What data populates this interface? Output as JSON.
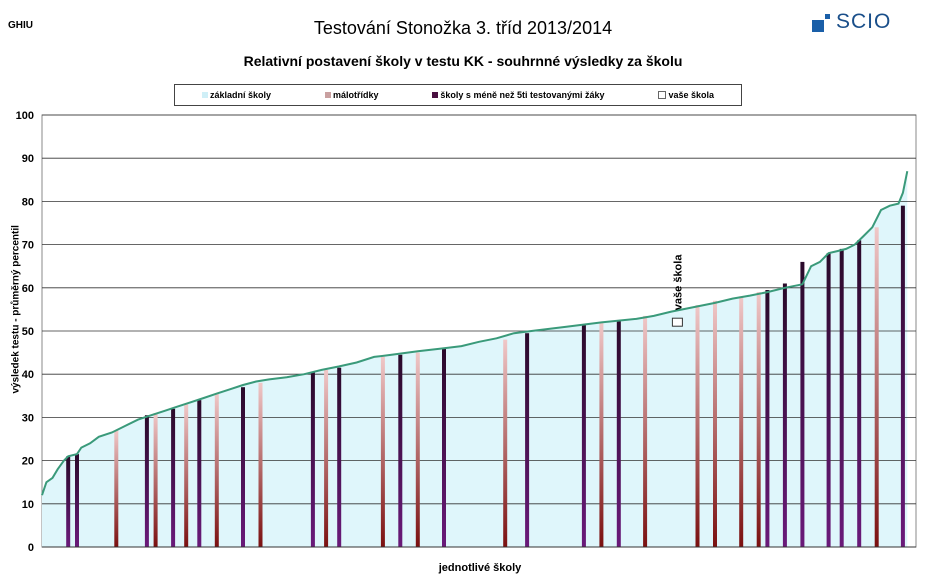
{
  "header": {
    "code": "GHIU",
    "logo_text": "SCIO"
  },
  "chart_data": {
    "type": "bar",
    "title": "Testování Stonožka 3. tříd 2013/2014",
    "subtitle": "Relativní postavení školy v testu KK - souhrnné výsledky za školu",
    "xlabel": "jednotlivé školy",
    "ylabel": "výsledek testu - průměrný percentil",
    "ylim": [
      0,
      100
    ],
    "yticks": [
      0,
      10,
      20,
      30,
      40,
      50,
      60,
      70,
      80,
      90,
      100
    ],
    "grid": true,
    "legend_position": "top",
    "legend": [
      {
        "key": "zakladni",
        "label": "základní školy",
        "color": "#cfeff7"
      },
      {
        "key": "malotridky",
        "label": "málotřídky",
        "color": "#c9a0a0"
      },
      {
        "key": "mene5",
        "label": "školy s méně než 5ti testovanými žáky",
        "color": "#4a1040"
      },
      {
        "key": "vase",
        "label": "vaše škola",
        "color": "#ffffff"
      }
    ],
    "annotation": {
      "label": "vaše škola",
      "value": 52.5,
      "position_fraction": 0.727
    },
    "curve_points": [
      [
        0,
        12
      ],
      [
        0.005,
        15
      ],
      [
        0.012,
        16
      ],
      [
        0.018,
        18
      ],
      [
        0.025,
        20
      ],
      [
        0.03,
        21
      ],
      [
        0.04,
        21.5
      ],
      [
        0.045,
        23
      ],
      [
        0.055,
        24
      ],
      [
        0.065,
        25.5
      ],
      [
        0.08,
        26.5
      ],
      [
        0.095,
        28
      ],
      [
        0.11,
        29.5
      ],
      [
        0.125,
        30.5
      ],
      [
        0.14,
        31.5
      ],
      [
        0.155,
        32.5
      ],
      [
        0.17,
        33.5
      ],
      [
        0.185,
        34.5
      ],
      [
        0.2,
        35.5
      ],
      [
        0.215,
        36.5
      ],
      [
        0.23,
        37.5
      ],
      [
        0.245,
        38.3
      ],
      [
        0.26,
        38.8
      ],
      [
        0.28,
        39.3
      ],
      [
        0.3,
        40
      ],
      [
        0.32,
        41
      ],
      [
        0.34,
        41.8
      ],
      [
        0.36,
        42.7
      ],
      [
        0.38,
        44
      ],
      [
        0.4,
        44.5
      ],
      [
        0.43,
        45.3
      ],
      [
        0.46,
        46
      ],
      [
        0.48,
        46.5
      ],
      [
        0.5,
        47.5
      ],
      [
        0.52,
        48.3
      ],
      [
        0.54,
        49.5
      ],
      [
        0.56,
        50
      ],
      [
        0.6,
        51
      ],
      [
        0.64,
        52
      ],
      [
        0.68,
        52.8
      ],
      [
        0.7,
        53.5
      ],
      [
        0.72,
        54.5
      ],
      [
        0.74,
        55.3
      ],
      [
        0.77,
        56.5
      ],
      [
        0.79,
        57.5
      ],
      [
        0.81,
        58.2
      ],
      [
        0.83,
        59
      ],
      [
        0.85,
        60
      ],
      [
        0.87,
        60.8
      ],
      [
        0.88,
        65
      ],
      [
        0.89,
        66
      ],
      [
        0.9,
        68
      ],
      [
        0.91,
        68.5
      ],
      [
        0.92,
        69
      ],
      [
        0.93,
        70
      ],
      [
        0.94,
        72
      ],
      [
        0.95,
        74
      ],
      [
        0.96,
        78
      ],
      [
        0.97,
        79
      ],
      [
        0.98,
        79.5
      ],
      [
        0.985,
        82
      ],
      [
        0.99,
        87
      ]
    ],
    "bars": [
      {
        "x": 0.03,
        "value": 21,
        "category": "mene5"
      },
      {
        "x": 0.04,
        "value": 21.5,
        "category": "mene5"
      },
      {
        "x": 0.085,
        "value": 27,
        "category": "malotridky"
      },
      {
        "x": 0.12,
        "value": 30.5,
        "category": "mene5"
      },
      {
        "x": 0.13,
        "value": 31,
        "category": "malotridky"
      },
      {
        "x": 0.15,
        "value": 32,
        "category": "mene5"
      },
      {
        "x": 0.165,
        "value": 33,
        "category": "malotridky"
      },
      {
        "x": 0.18,
        "value": 34,
        "category": "mene5"
      },
      {
        "x": 0.2,
        "value": 35.5,
        "category": "malotridky"
      },
      {
        "x": 0.23,
        "value": 37,
        "category": "mene5"
      },
      {
        "x": 0.25,
        "value": 38,
        "category": "malotridky"
      },
      {
        "x": 0.31,
        "value": 40.5,
        "category": "mene5"
      },
      {
        "x": 0.325,
        "value": 41,
        "category": "malotridky"
      },
      {
        "x": 0.34,
        "value": 41.5,
        "category": "mene5"
      },
      {
        "x": 0.39,
        "value": 44,
        "category": "malotridky"
      },
      {
        "x": 0.41,
        "value": 44.5,
        "category": "mene5"
      },
      {
        "x": 0.43,
        "value": 45,
        "category": "malotridky"
      },
      {
        "x": 0.46,
        "value": 46,
        "category": "mene5"
      },
      {
        "x": 0.53,
        "value": 48,
        "category": "malotridky"
      },
      {
        "x": 0.555,
        "value": 49.5,
        "category": "mene5"
      },
      {
        "x": 0.62,
        "value": 51.5,
        "category": "mene5"
      },
      {
        "x": 0.64,
        "value": 52,
        "category": "malotridky"
      },
      {
        "x": 0.66,
        "value": 52.5,
        "category": "mene5"
      },
      {
        "x": 0.69,
        "value": 53.5,
        "category": "malotridky"
      },
      {
        "x": 0.75,
        "value": 56,
        "category": "malotridky"
      },
      {
        "x": 0.77,
        "value": 57,
        "category": "malotridky"
      },
      {
        "x": 0.8,
        "value": 58,
        "category": "malotridky"
      },
      {
        "x": 0.82,
        "value": 59,
        "category": "malotridky"
      },
      {
        "x": 0.83,
        "value": 59.5,
        "category": "mene5"
      },
      {
        "x": 0.85,
        "value": 61,
        "category": "mene5"
      },
      {
        "x": 0.87,
        "value": 66,
        "category": "mene5"
      },
      {
        "x": 0.9,
        "value": 68,
        "category": "mene5"
      },
      {
        "x": 0.915,
        "value": 69,
        "category": "mene5"
      },
      {
        "x": 0.935,
        "value": 71,
        "category": "mene5"
      },
      {
        "x": 0.955,
        "value": 74,
        "category": "malotridky"
      },
      {
        "x": 0.985,
        "value": 79,
        "category": "mene5"
      }
    ]
  }
}
